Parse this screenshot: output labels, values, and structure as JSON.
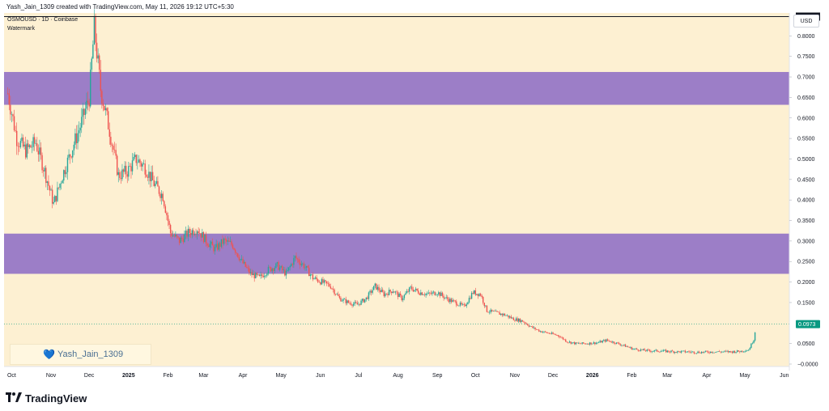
{
  "header": {
    "attribution": "Yash_Jain_1309 created with TradingView.com, May 11, 2026 19:12 UTC+5:30"
  },
  "legend": {
    "symbol_line": "OSMOUSD · 1D · Coinbase",
    "watermark_label": "Watermark"
  },
  "currency": "USD",
  "watermark": {
    "user": "Yash_Jain_1309",
    "icon": "heart-icon"
  },
  "brand": {
    "name": "TradingView",
    "logo": "tv-logo-icon"
  },
  "colors": {
    "up": "#26a69a",
    "down": "#ef5350",
    "zone": "#9c7ec7",
    "background": "#fdf0d2",
    "last_price": "#089981"
  },
  "chart_data": {
    "type": "candlestick",
    "symbol": "OSMOUSD",
    "interval": "1D",
    "exchange": "Coinbase",
    "y_ticks": [
      "0.8000",
      "0.7500",
      "0.7000",
      "0.6500",
      "0.6000",
      "0.5500",
      "0.5000",
      "0.4500",
      "0.4000",
      "0.3500",
      "0.3000",
      "0.2500",
      "0.2000",
      "0.1500",
      "0.0500",
      "−0.0000"
    ],
    "y_range": [
      0,
      0.85
    ],
    "x_ticks": [
      "Oct",
      "Nov",
      "Dec",
      "2025",
      "Feb",
      "Mar",
      "Apr",
      "May",
      "Jun",
      "Jul",
      "Aug",
      "Sep",
      "Oct",
      "Nov",
      "Dec",
      "2026",
      "Feb",
      "Mar",
      "Apr",
      "May",
      "Jun"
    ],
    "high_line": {
      "value": 0.847,
      "label": "0.8470"
    },
    "last_price": {
      "value": 0.0973,
      "label": "0.0973"
    },
    "zones": [
      {
        "from": 0.632,
        "to": 0.712
      },
      {
        "from": 0.22,
        "to": 0.318
      }
    ],
    "series": [
      {
        "date": "2024-09-28",
        "close": 0.66
      },
      {
        "date": "2024-10-05",
        "close": 0.55
      },
      {
        "date": "2024-10-12",
        "close": 0.52
      },
      {
        "date": "2024-10-20",
        "close": 0.54
      },
      {
        "date": "2024-10-27",
        "close": 0.47
      },
      {
        "date": "2024-11-03",
        "close": 0.39
      },
      {
        "date": "2024-11-10",
        "close": 0.46
      },
      {
        "date": "2024-11-17",
        "close": 0.52
      },
      {
        "date": "2024-11-24",
        "close": 0.58
      },
      {
        "date": "2024-12-01",
        "close": 0.65
      },
      {
        "date": "2024-12-05",
        "close": 0.82
      },
      {
        "date": "2024-12-10",
        "close": 0.67
      },
      {
        "date": "2024-12-17",
        "close": 0.57
      },
      {
        "date": "2024-12-24",
        "close": 0.46
      },
      {
        "date": "2024-12-31",
        "close": 0.47
      },
      {
        "date": "2025-01-07",
        "close": 0.5
      },
      {
        "date": "2025-01-14",
        "close": 0.48
      },
      {
        "date": "2025-01-21",
        "close": 0.44
      },
      {
        "date": "2025-01-28",
        "close": 0.41
      },
      {
        "date": "2025-02-03",
        "close": 0.32
      },
      {
        "date": "2025-02-10",
        "close": 0.3
      },
      {
        "date": "2025-02-17",
        "close": 0.32
      },
      {
        "date": "2025-02-24",
        "close": 0.33
      },
      {
        "date": "2025-03-03",
        "close": 0.3
      },
      {
        "date": "2025-03-10",
        "close": 0.28
      },
      {
        "date": "2025-03-17",
        "close": 0.3
      },
      {
        "date": "2025-03-24",
        "close": 0.29
      },
      {
        "date": "2025-03-31",
        "close": 0.25
      },
      {
        "date": "2025-04-07",
        "close": 0.22
      },
      {
        "date": "2025-04-14",
        "close": 0.21
      },
      {
        "date": "2025-04-21",
        "close": 0.23
      },
      {
        "date": "2025-04-28",
        "close": 0.24
      },
      {
        "date": "2025-05-05",
        "close": 0.22
      },
      {
        "date": "2025-05-12",
        "close": 0.26
      },
      {
        "date": "2025-05-19",
        "close": 0.24
      },
      {
        "date": "2025-05-26",
        "close": 0.21
      },
      {
        "date": "2025-06-02",
        "close": 0.2
      },
      {
        "date": "2025-06-09",
        "close": 0.19
      },
      {
        "date": "2025-06-16",
        "close": 0.16
      },
      {
        "date": "2025-06-23",
        "close": 0.15
      },
      {
        "date": "2025-06-30",
        "close": 0.145
      },
      {
        "date": "2025-07-07",
        "close": 0.16
      },
      {
        "date": "2025-07-14",
        "close": 0.19
      },
      {
        "date": "2025-07-21",
        "close": 0.17
      },
      {
        "date": "2025-07-28",
        "close": 0.18
      },
      {
        "date": "2025-08-04",
        "close": 0.16
      },
      {
        "date": "2025-08-11",
        "close": 0.185
      },
      {
        "date": "2025-08-18",
        "close": 0.175
      },
      {
        "date": "2025-08-25",
        "close": 0.17
      },
      {
        "date": "2025-09-01",
        "close": 0.175
      },
      {
        "date": "2025-09-08",
        "close": 0.16
      },
      {
        "date": "2025-09-15",
        "close": 0.15
      },
      {
        "date": "2025-09-22",
        "close": 0.14
      },
      {
        "date": "2025-09-29",
        "close": 0.175
      },
      {
        "date": "2025-10-05",
        "close": 0.17
      },
      {
        "date": "2025-10-10",
        "close": 0.13
      },
      {
        "date": "2025-10-17",
        "close": 0.125
      },
      {
        "date": "2025-10-24",
        "close": 0.12
      },
      {
        "date": "2025-10-31",
        "close": 0.11
      },
      {
        "date": "2025-11-07",
        "close": 0.105
      },
      {
        "date": "2025-11-14",
        "close": 0.09
      },
      {
        "date": "2025-11-21",
        "close": 0.08
      },
      {
        "date": "2025-11-28",
        "close": 0.075
      },
      {
        "date": "2025-12-05",
        "close": 0.07
      },
      {
        "date": "2025-12-12",
        "close": 0.055
      },
      {
        "date": "2025-12-19",
        "close": 0.05
      },
      {
        "date": "2025-12-26",
        "close": 0.05
      },
      {
        "date": "2026-01-05",
        "close": 0.052
      },
      {
        "date": "2026-01-12",
        "close": 0.058
      },
      {
        "date": "2026-01-19",
        "close": 0.052
      },
      {
        "date": "2026-01-26",
        "close": 0.045
      },
      {
        "date": "2026-02-02",
        "close": 0.037
      },
      {
        "date": "2026-02-09",
        "close": 0.034
      },
      {
        "date": "2026-02-16",
        "close": 0.032
      },
      {
        "date": "2026-02-23",
        "close": 0.032
      },
      {
        "date": "2026-03-02",
        "close": 0.031
      },
      {
        "date": "2026-03-09",
        "close": 0.03
      },
      {
        "date": "2026-03-16",
        "close": 0.03
      },
      {
        "date": "2026-03-23",
        "close": 0.029
      },
      {
        "date": "2026-03-30",
        "close": 0.029
      },
      {
        "date": "2026-04-06",
        "close": 0.03
      },
      {
        "date": "2026-04-13",
        "close": 0.03
      },
      {
        "date": "2026-04-20",
        "close": 0.03
      },
      {
        "date": "2026-04-27",
        "close": 0.031
      },
      {
        "date": "2026-05-04",
        "close": 0.035
      },
      {
        "date": "2026-05-08",
        "close": 0.06
      },
      {
        "date": "2026-05-10",
        "close": 0.0973
      }
    ]
  }
}
